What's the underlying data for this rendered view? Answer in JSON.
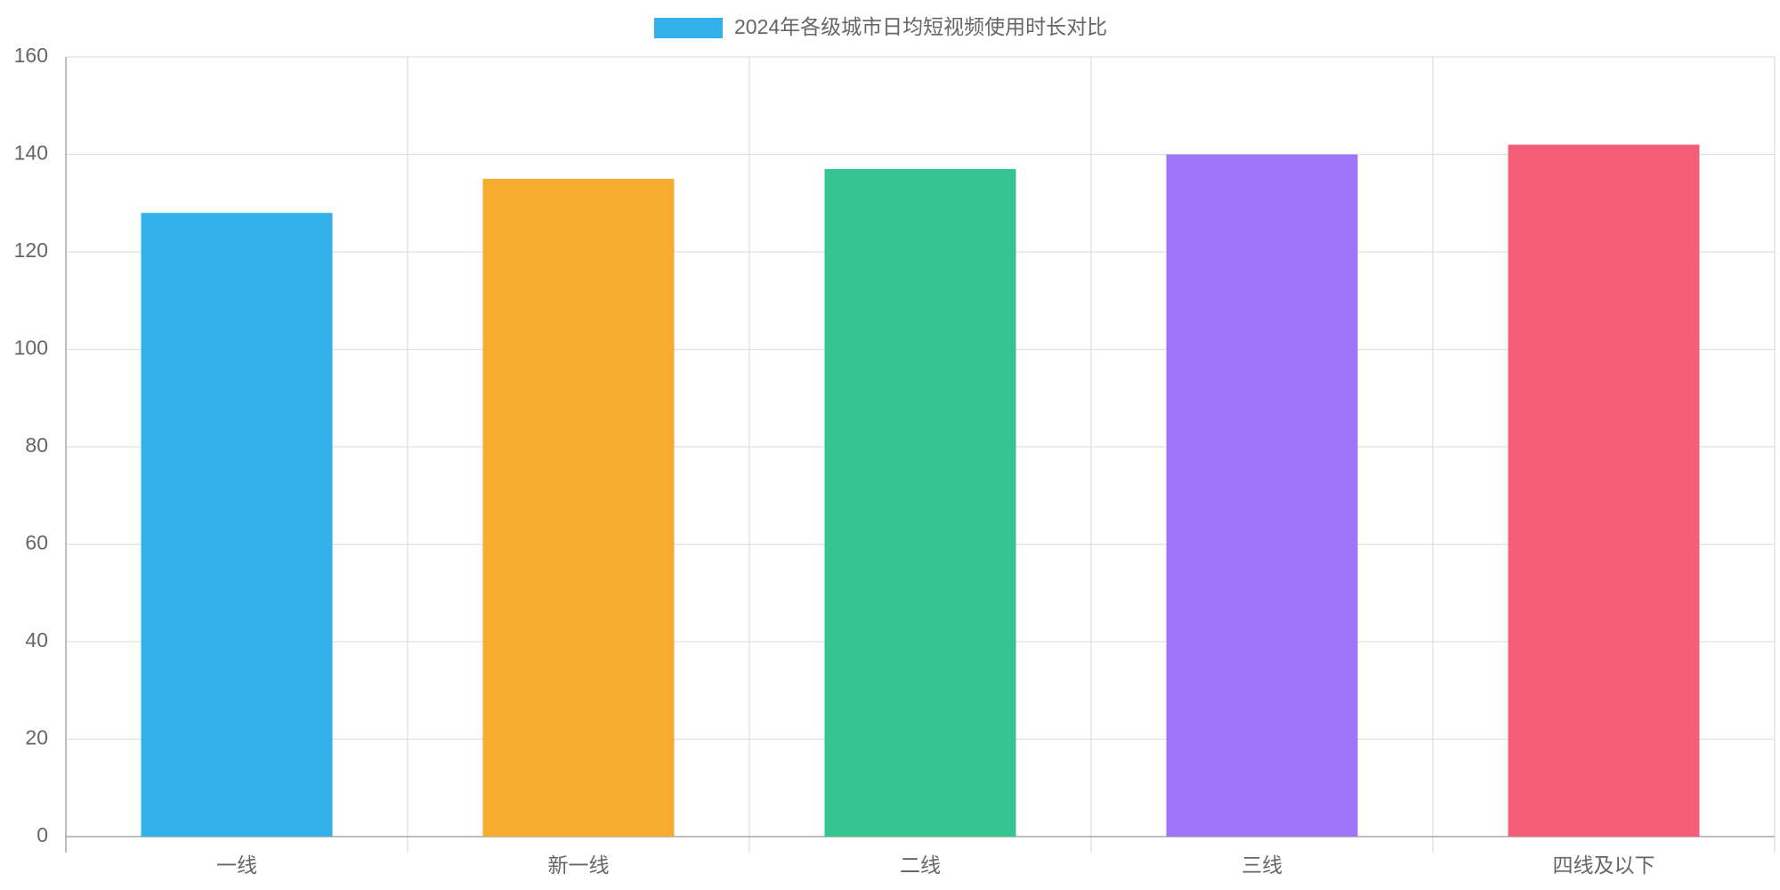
{
  "chart_data": {
    "type": "bar",
    "categories": [
      "一线",
      "新一线",
      "二线",
      "三线",
      "四线及以下"
    ],
    "series": [
      {
        "name": "2024年各级城市日均短视频使用时长对比",
        "colors": [
          "#33b1ea",
          "#f5ac30",
          "#34c490",
          "#9c76f7",
          "#f45e77"
        ],
        "values": [
          128,
          135,
          137,
          140,
          142
        ]
      }
    ],
    "ylim": [
      0,
      160
    ],
    "yticks": [
      0,
      20,
      40,
      60,
      80,
      100,
      120,
      140,
      160
    ],
    "grid": true,
    "legend": "top"
  }
}
